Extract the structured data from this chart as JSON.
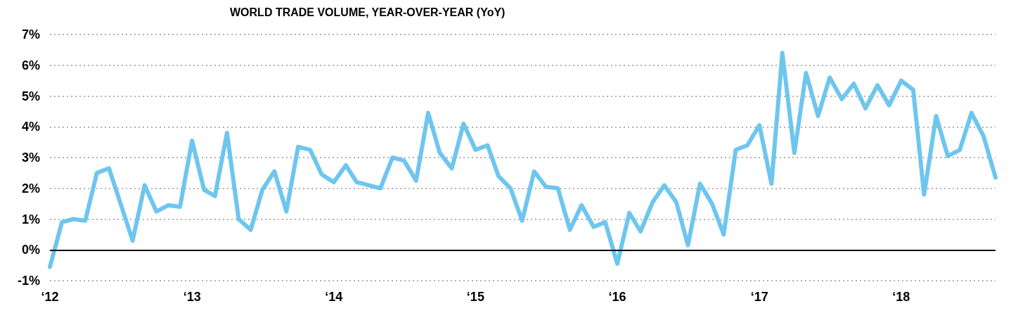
{
  "chart_data": {
    "type": "line",
    "title": "WORLD TRADE VOLUME, YEAR-OVER-YEAR (YoY)",
    "x": [
      "2012-01",
      "2012-02",
      "2012-03",
      "2012-04",
      "2012-05",
      "2012-06",
      "2012-07",
      "2012-08",
      "2012-09",
      "2012-10",
      "2012-11",
      "2012-12",
      "2013-01",
      "2013-02",
      "2013-03",
      "2013-04",
      "2013-05",
      "2013-06",
      "2013-07",
      "2013-08",
      "2013-09",
      "2013-10",
      "2013-11",
      "2013-12",
      "2014-01",
      "2014-02",
      "2014-03",
      "2014-04",
      "2014-05",
      "2014-06",
      "2014-07",
      "2014-08",
      "2014-09",
      "2014-10",
      "2014-11",
      "2014-12",
      "2015-01",
      "2015-02",
      "2015-03",
      "2015-04",
      "2015-05",
      "2015-06",
      "2015-07",
      "2015-08",
      "2015-09",
      "2015-10",
      "2015-11",
      "2015-12",
      "2016-01",
      "2016-02",
      "2016-03",
      "2016-04",
      "2016-05",
      "2016-06",
      "2016-07",
      "2016-08",
      "2016-09",
      "2016-10",
      "2016-11",
      "2016-12",
      "2017-01",
      "2017-02",
      "2017-03",
      "2017-04",
      "2017-05",
      "2017-06",
      "2017-07",
      "2017-08",
      "2017-09",
      "2017-10",
      "2017-11",
      "2017-12",
      "2018-01",
      "2018-02",
      "2018-03",
      "2018-04",
      "2018-05",
      "2018-06",
      "2018-07",
      "2018-08",
      "2018-09"
    ],
    "series": [
      {
        "color": "#6ec6ee",
        "values": [
          -0.55,
          0.9,
          1.0,
          0.95,
          2.5,
          2.65,
          1.5,
          0.3,
          2.1,
          1.25,
          1.45,
          1.4,
          3.55,
          1.95,
          1.75,
          3.8,
          1.0,
          0.65,
          1.95,
          2.55,
          1.25,
          3.35,
          3.25,
          2.45,
          2.2,
          2.75,
          2.2,
          2.1,
          2.0,
          3.0,
          2.9,
          2.25,
          4.45,
          3.15,
          2.65,
          4.1,
          3.25,
          3.4,
          2.4,
          2.0,
          0.95,
          2.55,
          2.05,
          2.0,
          0.65,
          1.45,
          0.75,
          0.9,
          -0.45,
          1.2,
          0.6,
          1.55,
          2.1,
          1.55,
          0.15,
          2.15,
          1.5,
          0.5,
          3.25,
          3.4,
          4.05,
          2.15,
          6.4,
          3.15,
          5.75,
          4.35,
          5.6,
          4.9,
          5.4,
          4.6,
          5.35,
          4.7,
          5.5,
          5.2,
          1.8,
          4.35,
          3.05,
          3.25,
          4.45,
          3.7,
          2.35
        ]
      }
    ],
    "xlim": [
      "2012-01",
      "2018-09"
    ],
    "xticks": [
      {
        "value": "2012-01",
        "label": "‘12"
      },
      {
        "value": "2013-01",
        "label": "‘13"
      },
      {
        "value": "2014-01",
        "label": "‘14"
      },
      {
        "value": "2015-01",
        "label": "‘15"
      },
      {
        "value": "2016-01",
        "label": "‘16"
      },
      {
        "value": "2017-01",
        "label": "‘17"
      },
      {
        "value": "2018-01",
        "label": "‘18"
      }
    ],
    "ylim": [
      -1,
      7
    ],
    "yticks": [
      {
        "value": -1,
        "label": "-1%"
      },
      {
        "value": 0,
        "label": "0%"
      },
      {
        "value": 1,
        "label": "1%"
      },
      {
        "value": 2,
        "label": "2%"
      },
      {
        "value": 3,
        "label": "3%"
      },
      {
        "value": 4,
        "label": "4%"
      },
      {
        "value": 5,
        "label": "5%"
      },
      {
        "value": 6,
        "label": "6%"
      },
      {
        "value": 7,
        "label": "7%"
      }
    ],
    "ref_lines": [
      {
        "axis": "y",
        "value": 0,
        "color": "#000000",
        "line_style": "solid"
      }
    ],
    "grid": "y",
    "marker": "none",
    "line_style": "solid"
  }
}
